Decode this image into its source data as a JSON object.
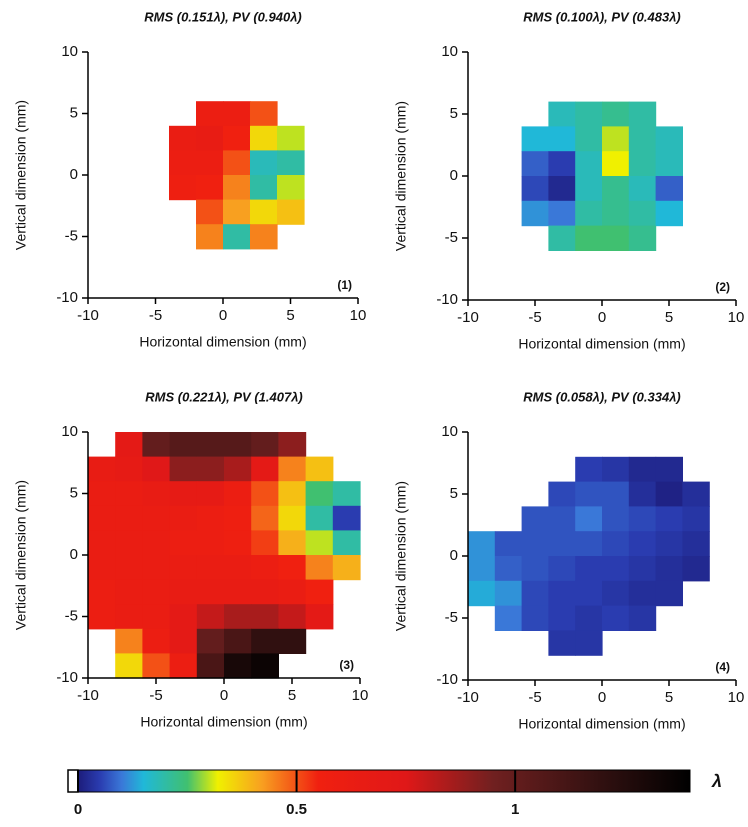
{
  "chart_data": [
    {
      "type": "heatmap",
      "title": "RMS (0.151λ), PV (0.940λ)",
      "panel_label": "(1)",
      "x_label": "Horizontal dimension (mm)",
      "y_label": "Vertical dimension (mm)",
      "xlim": [
        -10,
        10
      ],
      "ylim": [
        -10,
        10
      ],
      "xticks": [
        -10,
        -5,
        0,
        5,
        10
      ],
      "yticks": [
        -10,
        -5,
        0,
        5,
        10
      ],
      "x": [
        -9,
        -7,
        -5,
        -3,
        -1,
        1,
        3,
        5,
        7,
        9
      ],
      "y": [
        9,
        7,
        5,
        3,
        1,
        -1,
        -3,
        -5,
        -7,
        -9
      ],
      "z": [
        [
          null,
          null,
          null,
          null,
          null,
          null,
          null,
          null,
          null,
          null
        ],
        [
          null,
          null,
          null,
          null,
          null,
          null,
          null,
          null,
          null,
          null
        ],
        [
          null,
          null,
          null,
          null,
          0.6,
          0.6,
          0.5,
          null,
          null,
          null
        ],
        [
          null,
          null,
          null,
          0.62,
          0.65,
          0.55,
          0.35,
          0.3,
          null,
          null
        ],
        [
          null,
          null,
          null,
          0.6,
          0.6,
          0.5,
          0.18,
          0.2,
          null,
          null
        ],
        [
          null,
          null,
          null,
          0.58,
          0.55,
          0.45,
          0.2,
          0.3,
          null,
          null
        ],
        [
          null,
          null,
          null,
          null,
          0.5,
          0.42,
          0.35,
          0.38,
          null,
          null
        ],
        [
          null,
          null,
          null,
          null,
          0.45,
          0.2,
          0.45,
          null,
          null,
          null
        ],
        [
          null,
          null,
          null,
          null,
          null,
          null,
          null,
          null,
          null,
          null
        ],
        [
          null,
          null,
          null,
          null,
          null,
          null,
          null,
          null,
          null,
          null
        ]
      ]
    },
    {
      "type": "heatmap",
      "title": "RMS (0.100λ), PV (0.483λ)",
      "panel_label": "(2)",
      "x_label": "Horizontal dimension (mm)",
      "y_label": "Vertical dimension (mm)",
      "xlim": [
        -10,
        10
      ],
      "ylim": [
        -10,
        10
      ],
      "xticks": [
        -10,
        -5,
        0,
        5,
        10
      ],
      "yticks": [
        -10,
        -5,
        0,
        5,
        10
      ],
      "x": [
        -9,
        -7,
        -5,
        -3,
        -1,
        1,
        3,
        5,
        7,
        9
      ],
      "y": [
        9,
        7,
        5,
        3,
        1,
        -1,
        -3,
        -5,
        -7,
        -9
      ],
      "z": [
        [
          null,
          null,
          null,
          null,
          null,
          null,
          null,
          null,
          null,
          null
        ],
        [
          null,
          null,
          null,
          null,
          null,
          null,
          null,
          null,
          null,
          null
        ],
        [
          null,
          null,
          null,
          0.18,
          0.2,
          0.22,
          0.2,
          null,
          null,
          null
        ],
        [
          null,
          null,
          0.15,
          0.15,
          0.2,
          0.3,
          0.2,
          0.18,
          null,
          null
        ],
        [
          null,
          null,
          0.08,
          0.05,
          0.18,
          0.32,
          0.2,
          0.18,
          null,
          null
        ],
        [
          null,
          null,
          0.06,
          0.02,
          0.18,
          0.22,
          0.18,
          0.08,
          null,
          null
        ],
        [
          null,
          null,
          0.12,
          0.1,
          0.2,
          0.22,
          0.2,
          0.15,
          null,
          null
        ],
        [
          null,
          null,
          null,
          0.2,
          0.25,
          0.25,
          0.22,
          null,
          null,
          null
        ],
        [
          null,
          null,
          null,
          null,
          null,
          null,
          null,
          null,
          null,
          null
        ],
        [
          null,
          null,
          null,
          null,
          null,
          null,
          null,
          null,
          null,
          null
        ]
      ]
    },
    {
      "type": "heatmap",
      "title": "RMS (0.221λ), PV (1.407λ)",
      "panel_label": "(3)",
      "x_label": "Horizontal dimension (mm)",
      "y_label": "Vertical dimension (mm)",
      "xlim": [
        -10,
        10
      ],
      "ylim": [
        -10,
        10
      ],
      "xticks": [
        -10,
        -5,
        0,
        5,
        10
      ],
      "yticks": [
        -10,
        -5,
        0,
        5,
        10
      ],
      "x": [
        -9,
        -7,
        -5,
        -3,
        -1,
        1,
        3,
        5,
        7,
        9
      ],
      "y": [
        9,
        7,
        5,
        3,
        1,
        -1,
        -3,
        -5,
        -7,
        -9
      ],
      "z": [
        [
          null,
          0.7,
          1.0,
          1.05,
          1.05,
          1.05,
          1.0,
          0.9,
          null,
          null
        ],
        [
          0.65,
          0.68,
          0.75,
          0.9,
          0.9,
          0.85,
          0.7,
          0.45,
          0.38,
          null
        ],
        [
          0.62,
          0.62,
          0.65,
          0.68,
          0.68,
          0.6,
          0.5,
          0.38,
          0.25,
          0.2
        ],
        [
          0.62,
          0.62,
          0.62,
          0.62,
          0.6,
          0.58,
          0.48,
          0.35,
          0.2,
          0.05
        ],
        [
          0.62,
          0.62,
          0.62,
          0.6,
          0.6,
          0.58,
          0.52,
          0.4,
          0.3,
          0.2
        ],
        [
          0.62,
          0.62,
          0.62,
          0.62,
          0.62,
          0.62,
          0.6,
          0.55,
          0.45,
          0.4
        ],
        [
          0.6,
          0.62,
          0.62,
          0.65,
          0.65,
          0.65,
          0.65,
          0.62,
          0.55,
          null
        ],
        [
          0.6,
          0.62,
          0.62,
          0.7,
          0.8,
          0.85,
          0.85,
          0.8,
          0.7,
          null
        ],
        [
          null,
          0.45,
          0.6,
          0.7,
          1.0,
          1.1,
          1.2,
          1.2,
          null,
          null
        ],
        [
          null,
          0.35,
          0.5,
          0.6,
          1.1,
          1.3,
          1.35,
          null,
          null,
          null
        ]
      ]
    },
    {
      "type": "heatmap",
      "title": "RMS (0.058λ), PV (0.334λ)",
      "panel_label": "(4)",
      "x_label": "Horizontal dimension (mm)",
      "y_label": "Vertical dimension (mm)",
      "xlim": [
        -10,
        10
      ],
      "ylim": [
        -10,
        10
      ],
      "xticks": [
        -10,
        -5,
        0,
        5,
        10
      ],
      "yticks": [
        -10,
        -5,
        0,
        5,
        10
      ],
      "x": [
        -9,
        -7,
        -5,
        -3,
        -1,
        1,
        3,
        5,
        7,
        9
      ],
      "y": [
        9,
        7,
        5,
        3,
        1,
        -1,
        -3,
        -5,
        -7,
        -9
      ],
      "z": [
        [
          null,
          null,
          null,
          null,
          null,
          null,
          null,
          null,
          null,
          null
        ],
        [
          null,
          null,
          null,
          null,
          0.05,
          0.04,
          0.02,
          0.02,
          null,
          null
        ],
        [
          null,
          null,
          null,
          0.06,
          0.07,
          0.07,
          0.03,
          0.01,
          0.03,
          null
        ],
        [
          null,
          null,
          0.07,
          0.07,
          0.1,
          0.07,
          0.06,
          0.05,
          0.04,
          null
        ],
        [
          0.12,
          0.07,
          0.07,
          0.07,
          0.07,
          0.06,
          0.05,
          0.04,
          0.03,
          null
        ],
        [
          0.12,
          0.08,
          0.07,
          0.06,
          0.05,
          0.05,
          0.04,
          0.03,
          0.02,
          null
        ],
        [
          0.14,
          0.12,
          0.06,
          0.05,
          0.05,
          0.04,
          0.03,
          0.03,
          null,
          null
        ],
        [
          null,
          0.1,
          0.06,
          0.05,
          0.04,
          0.05,
          0.04,
          null,
          null,
          null
        ],
        [
          null,
          null,
          null,
          0.04,
          0.04,
          null,
          null,
          null,
          null,
          null
        ],
        [
          null,
          null,
          null,
          null,
          null,
          null,
          null,
          null,
          null,
          null
        ]
      ]
    }
  ],
  "colorbar": {
    "label": "λ",
    "lim": [
      0,
      1.4
    ],
    "ticks": [
      0,
      0.5,
      1
    ],
    "colormap": [
      [
        0,
        "#1c1c7a"
      ],
      [
        0.05,
        "#2a3cb0"
      ],
      [
        0.1,
        "#3a78d8"
      ],
      [
        0.15,
        "#20b8d8"
      ],
      [
        0.25,
        "#40c070"
      ],
      [
        0.32,
        "#f0f000"
      ],
      [
        0.42,
        "#f8a020"
      ],
      [
        0.55,
        "#f02010"
      ],
      [
        0.75,
        "#e01818"
      ],
      [
        0.95,
        "#702020"
      ],
      [
        1.2,
        "#301010"
      ],
      [
        1.4,
        "#000000"
      ]
    ]
  }
}
